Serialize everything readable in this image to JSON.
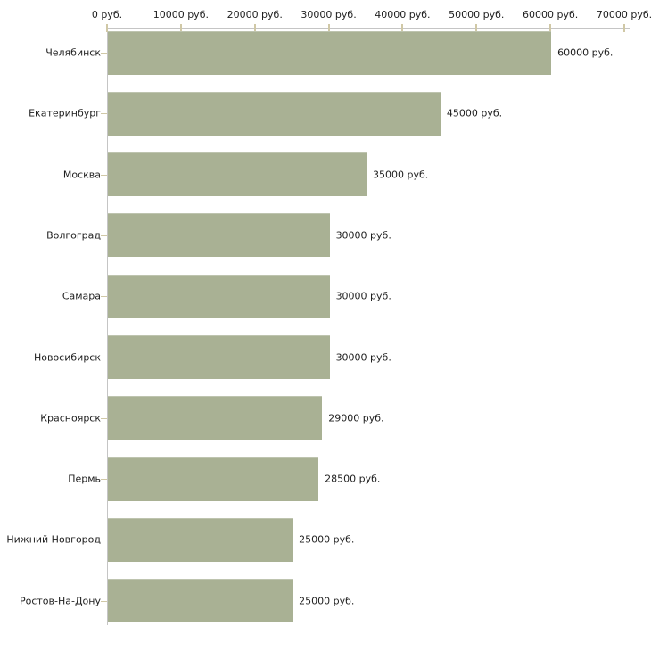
{
  "chart_data": {
    "type": "bar",
    "orientation": "horizontal",
    "title": "",
    "xlabel": "",
    "ylabel": "",
    "categories": [
      "Челябинск",
      "Екатеринбург",
      "Москва",
      "Волгоград",
      "Самара",
      "Новосибирск",
      "Красноярск",
      "Пермь",
      "Нижний Новгород",
      "Ростов-На-Дону"
    ],
    "values": [
      60000,
      45000,
      35000,
      30000,
      30000,
      30000,
      29000,
      28500,
      25000,
      25000
    ],
    "value_labels": [
      "60000 руб.",
      "45000 руб.",
      "35000 руб.",
      "30000 руб.",
      "30000 руб.",
      "30000 руб.",
      "29000 руб.",
      "28500 руб.",
      "25000 руб.",
      "25000 руб."
    ],
    "x_axis": {
      "position": "top",
      "range": [
        0,
        70000
      ],
      "ticks": [
        0,
        10000,
        20000,
        30000,
        40000,
        50000,
        60000,
        70000
      ],
      "tick_labels": [
        "0 руб.",
        "10000 руб.",
        "20000 руб.",
        "30000 руб.",
        "40000 руб.",
        "50000 руб.",
        "60000 руб.",
        "70000 руб."
      ]
    },
    "grid": false,
    "legend": false,
    "colors": {
      "background": "#ffffff",
      "bar_fill": "#a9b194",
      "axis_line": "#c5c5c5",
      "tick_mark": "#d0c8a6",
      "text": "#1f1f1f"
    }
  }
}
